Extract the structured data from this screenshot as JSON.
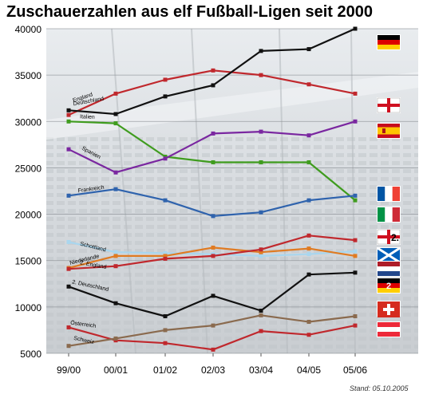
{
  "title": "Zuschauerzahlen aus elf Fußball-Ligen seit 2000",
  "footnote": "Stand: 05.10.2005",
  "chart_data": {
    "type": "line",
    "title": "Zuschauerzahlen aus elf Fußball-Ligen seit 2000",
    "xlabel": "",
    "ylabel": "",
    "categories": [
      "99/00",
      "00/01",
      "01/02",
      "02/03",
      "03/04",
      "04/05",
      "05/06"
    ],
    "ylim": [
      5000,
      40000
    ],
    "yticks": [
      5000,
      10000,
      15000,
      20000,
      25000,
      30000,
      35000,
      40000
    ],
    "grid": true,
    "series": [
      {
        "name": "England",
        "color": "#c0282d",
        "values": [
          30700,
          33000,
          34500,
          35500,
          35000,
          34000,
          33000
        ],
        "flag": "england"
      },
      {
        "name": "Deutschland",
        "color": "#111111",
        "values": [
          31200,
          30800,
          32700,
          33900,
          37600,
          37800,
          40000
        ],
        "flag": "germany"
      },
      {
        "name": "Italien",
        "color": "#3f9c1e",
        "values": [
          30000,
          29800,
          26200,
          25600,
          25600,
          25600,
          21500
        ],
        "flag": "italy"
      },
      {
        "name": "Spanien",
        "color": "#7a27a0",
        "values": [
          27000,
          24500,
          26000,
          28700,
          28900,
          28500,
          30000
        ],
        "flag": "spain"
      },
      {
        "name": "Frankreich",
        "color": "#2f63ad",
        "values": [
          22000,
          22700,
          21500,
          19800,
          20200,
          21500,
          22000
        ],
        "flag": "france"
      },
      {
        "name": "Schottland",
        "color": "#a9d6ee",
        "values": [
          17000,
          15900,
          15800,
          15700,
          15500,
          15700,
          16000
        ],
        "flag": "scotland"
      },
      {
        "name": "Niederlande",
        "color": "#e07b22",
        "values": [
          14200,
          15500,
          15500,
          16400,
          15900,
          16300,
          15500
        ],
        "flag": "netherlands"
      },
      {
        "name": "2. England",
        "color": "#c0282d",
        "values": [
          14100,
          14400,
          15200,
          15500,
          16200,
          17700,
          17200
        ],
        "flag": "england2"
      },
      {
        "name": "2. Deutschland",
        "color": "#111111",
        "values": [
          12200,
          10400,
          9000,
          11200,
          9600,
          13500,
          13700
        ],
        "flag": "germany2"
      },
      {
        "name": "Österreich",
        "color": "#c0282d",
        "values": [
          7800,
          6400,
          6100,
          5400,
          7400,
          7000,
          8000
        ],
        "flag": "austria"
      },
      {
        "name": "Schweiz",
        "color": "#8a6a4e",
        "values": [
          5800,
          6600,
          7500,
          8000,
          9100,
          8400,
          9000
        ],
        "flag": "switzerland"
      }
    ]
  }
}
